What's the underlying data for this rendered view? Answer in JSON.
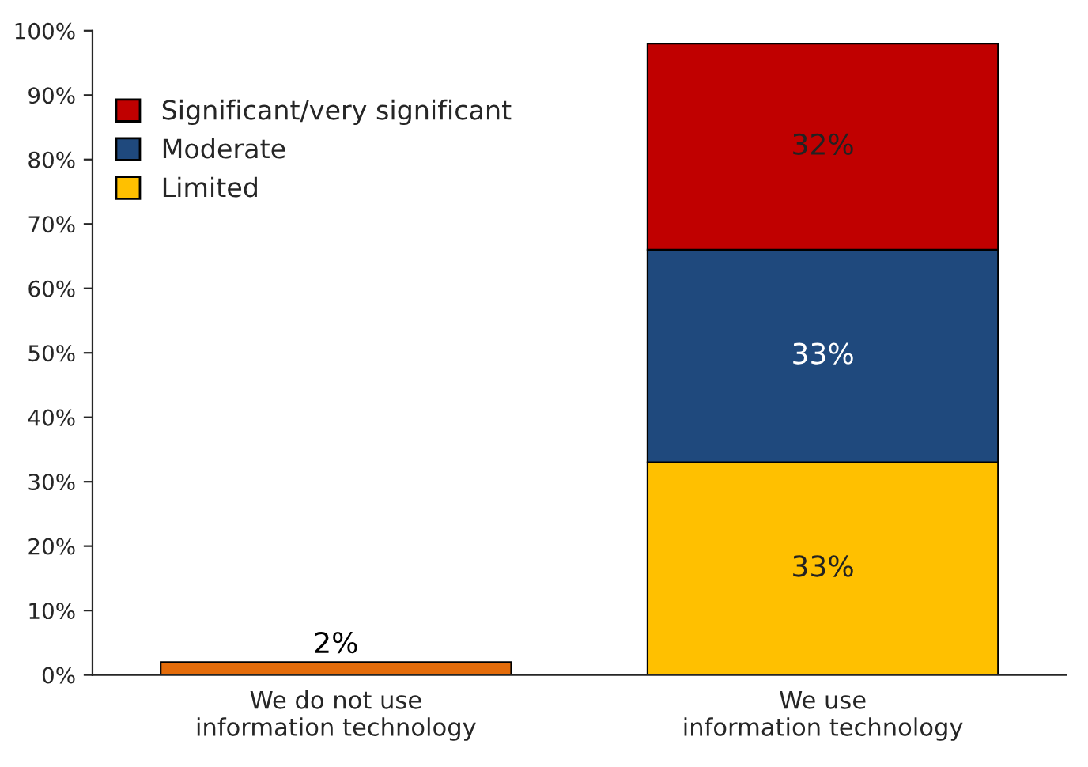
{
  "chart_data": {
    "type": "bar",
    "stacked": true,
    "categories": [
      "We do not use\ninformation technology",
      "We use\ninformation technology"
    ],
    "series": [
      {
        "color": "#e46c0a",
        "values": [
          2,
          null
        ],
        "value_labels": [
          "2%",
          null
        ]
      },
      {
        "name": "Limited",
        "color": "#ffc000",
        "values": [
          null,
          33
        ],
        "value_labels": [
          null,
          "33%"
        ]
      },
      {
        "name": "Moderate",
        "color": "#1f497d",
        "values": [
          null,
          33
        ],
        "value_labels": [
          null,
          "33%"
        ]
      },
      {
        "name": "Significant/very significant",
        "color": "#c00000",
        "values": [
          null,
          32
        ],
        "value_labels": [
          null,
          "32%"
        ]
      }
    ],
    "ylim": [
      0,
      100
    ],
    "yticks": [
      {
        "value": 0,
        "label": "0%"
      },
      {
        "value": 10,
        "label": "10%"
      },
      {
        "value": 20,
        "label": "20%"
      },
      {
        "value": 30,
        "label": "30%"
      },
      {
        "value": 40,
        "label": "40%"
      },
      {
        "value": 50,
        "label": "50%"
      },
      {
        "value": 60,
        "label": "60%"
      },
      {
        "value": 70,
        "label": "70%"
      },
      {
        "value": 80,
        "label": "80%"
      },
      {
        "value": 90,
        "label": "90%"
      },
      {
        "value": 100,
        "label": "100%"
      }
    ],
    "grid": false,
    "legend": "top left"
  }
}
